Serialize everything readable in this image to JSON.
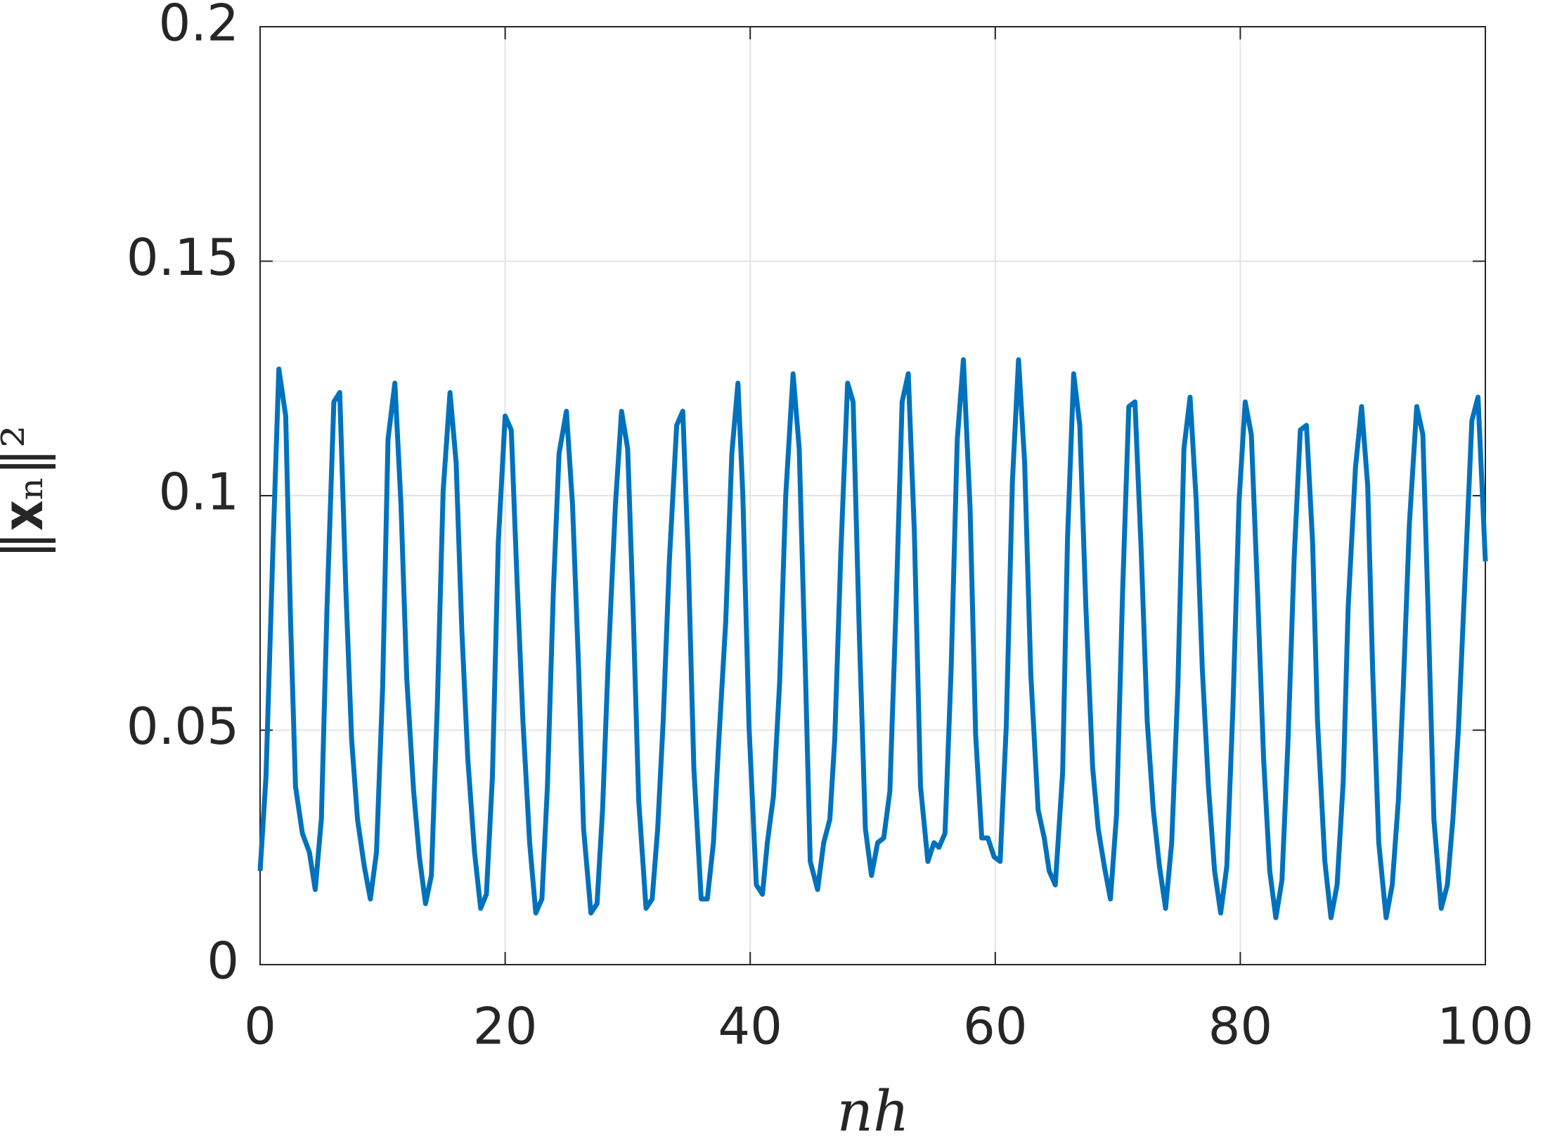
{
  "chart_data": {
    "type": "line",
    "xlabel": "nh",
    "ylabel": "‖𝐱ₙ‖²",
    "xlim": [
      0,
      100
    ],
    "ylim": [
      0,
      0.2
    ],
    "xticks": [
      0,
      20,
      40,
      60,
      80,
      100
    ],
    "yticks": [
      0,
      0.05,
      0.1,
      0.15,
      0.2
    ],
    "grid": true,
    "series": [
      {
        "color": "#0072BD",
        "x": [
          0,
          0.48,
          1.04,
          1.53,
          2.09,
          2.49,
          2.89,
          3.45,
          4.02,
          4.5,
          5.0,
          5.46,
          6.02,
          6.5,
          7.0,
          7.47,
          7.95,
          8.5,
          9.0,
          9.5,
          10.0,
          10.44,
          11.0,
          11.5,
          11.97,
          12.53,
          13.0,
          13.5,
          13.98,
          14.46,
          14.94,
          15.5,
          16.0,
          16.47,
          16.95,
          17.5,
          18.0,
          18.47,
          18.96,
          19.44,
          20.0,
          20.5,
          21.0,
          21.45,
          22.0,
          22.5,
          23.0,
          23.45,
          23.94,
          24.4,
          25.0,
          25.5,
          26.0,
          26.4,
          27.0,
          27.5,
          27.95,
          28.4,
          29.0,
          29.5,
          30.0,
          30.44,
          30.9,
          31.5,
          32.0,
          32.45,
          32.9,
          33.4,
          34.0,
          34.5,
          34.94,
          35.4,
          36.0,
          36.5,
          37.0,
          37.4,
          38.0,
          38.5,
          39.0,
          39.4,
          39.9,
          40.5,
          41.0,
          41.4,
          41.9,
          42.4,
          42.9,
          43.5,
          44.0,
          44.5,
          44.9,
          45.5,
          46.0,
          46.5,
          46.9,
          47.4,
          47.95,
          48.4,
          48.9,
          49.4,
          49.9,
          50.4,
          50.9,
          51.4,
          51.9,
          52.4,
          52.9,
          53.4,
          53.9,
          54.5,
          55.0,
          55.4,
          55.9,
          56.4,
          56.9,
          57.4,
          57.95,
          58.4,
          58.9,
          59.4,
          59.9,
          60.4,
          60.9,
          61.4,
          61.9,
          62.4,
          62.9,
          63.5,
          64.0,
          64.4,
          64.9,
          65.5,
          65.9,
          66.4,
          66.9,
          67.4,
          67.95,
          68.4,
          68.9,
          69.4,
          69.9,
          70.4,
          70.9,
          71.4,
          71.9,
          72.4,
          72.9,
          73.4,
          73.9,
          74.4,
          74.9,
          75.4,
          75.9,
          76.4,
          76.9,
          77.4,
          77.9,
          78.4,
          78.9,
          79.4,
          79.9,
          80.4,
          80.9,
          81.4,
          81.9,
          82.4,
          82.9,
          83.4,
          83.9,
          84.4,
          84.9,
          85.4,
          85.9,
          86.3,
          86.9,
          87.4,
          87.9,
          88.4,
          88.8,
          89.4,
          89.9,
          90.4,
          90.8,
          91.3,
          91.9,
          92.4,
          92.9,
          93.3,
          93.8,
          94.4,
          94.9,
          95.3,
          95.8,
          96.4,
          96.9,
          97.35,
          97.8,
          98.3,
          98.9,
          99.4,
          99.8,
          100
        ],
        "values": [
          0.02,
          0.04,
          0.088,
          0.127,
          0.117,
          0.073,
          0.038,
          0.028,
          0.024,
          0.016,
          0.031,
          0.076,
          0.12,
          0.122,
          0.08,
          0.048,
          0.031,
          0.021,
          0.014,
          0.024,
          0.059,
          0.112,
          0.124,
          0.098,
          0.061,
          0.037,
          0.023,
          0.013,
          0.019,
          0.055,
          0.101,
          0.122,
          0.107,
          0.071,
          0.044,
          0.024,
          0.012,
          0.015,
          0.04,
          0.09,
          0.117,
          0.114,
          0.08,
          0.052,
          0.026,
          0.011,
          0.014,
          0.038,
          0.08,
          0.109,
          0.118,
          0.098,
          0.063,
          0.029,
          0.011,
          0.013,
          0.033,
          0.064,
          0.098,
          0.118,
          0.11,
          0.076,
          0.035,
          0.012,
          0.014,
          0.029,
          0.052,
          0.086,
          0.115,
          0.118,
          0.087,
          0.042,
          0.014,
          0.014,
          0.026,
          0.046,
          0.073,
          0.109,
          0.124,
          0.1,
          0.051,
          0.017,
          0.015,
          0.026,
          0.036,
          0.06,
          0.1,
          0.126,
          0.11,
          0.063,
          0.022,
          0.016,
          0.026,
          0.031,
          0.048,
          0.088,
          0.124,
          0.12,
          0.071,
          0.029,
          0.019,
          0.026,
          0.027,
          0.037,
          0.076,
          0.12,
          0.126,
          0.092,
          0.038,
          0.022,
          0.026,
          0.025,
          0.028,
          0.063,
          0.112,
          0.129,
          0.097,
          0.049,
          0.027,
          0.027,
          0.023,
          0.022,
          0.051,
          0.103,
          0.129,
          0.107,
          0.062,
          0.033,
          0.027,
          0.02,
          0.017,
          0.041,
          0.091,
          0.126,
          0.115,
          0.076,
          0.042,
          0.029,
          0.021,
          0.014,
          0.032,
          0.08,
          0.119,
          0.12,
          0.089,
          0.052,
          0.033,
          0.021,
          0.012,
          0.026,
          0.059,
          0.11,
          0.121,
          0.099,
          0.063,
          0.038,
          0.02,
          0.011,
          0.021,
          0.055,
          0.099,
          0.12,
          0.113,
          0.08,
          0.044,
          0.02,
          0.01,
          0.018,
          0.048,
          0.087,
          0.114,
          0.115,
          0.09,
          0.052,
          0.022,
          0.01,
          0.017,
          0.039,
          0.076,
          0.106,
          0.119,
          0.102,
          0.063,
          0.026,
          0.01,
          0.017,
          0.035,
          0.059,
          0.094,
          0.119,
          0.113,
          0.078,
          0.031,
          0.012,
          0.017,
          0.031,
          0.05,
          0.08,
          0.116,
          0.121,
          0.098,
          0.086
        ]
      }
    ]
  }
}
